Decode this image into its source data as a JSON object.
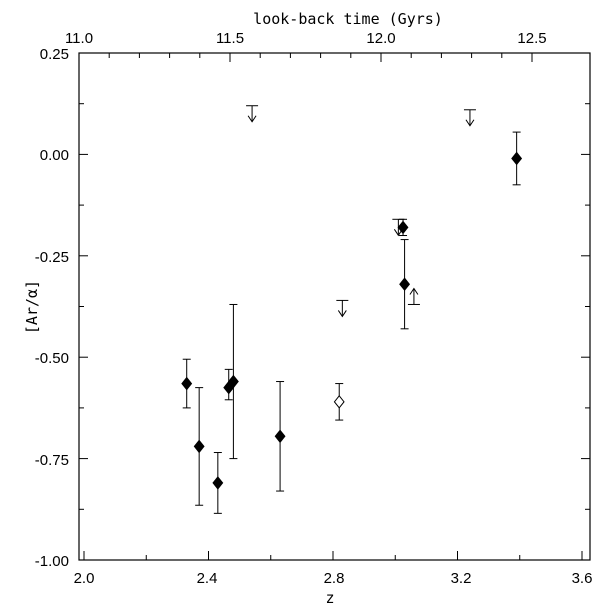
{
  "chart_data": {
    "type": "scatter",
    "xlabel": "z",
    "ylabel": "[Ar/α]",
    "top_xlabel": "look-back time (Gyrs)",
    "xlim": [
      2.0,
      3.6
    ],
    "ylim": [
      -1.0,
      0.25
    ],
    "x_ticks": [
      "2.0",
      "2.4",
      "2.8",
      "3.2",
      "3.6"
    ],
    "y_ticks": [
      "-1.00",
      "-0.75",
      "-0.50",
      "-0.25",
      "0.00",
      "0.25"
    ],
    "top_ticks": [
      "11.0",
      "11.5",
      "12.0",
      "12.5"
    ],
    "grid": false,
    "series": [
      {
        "marker": "filled-diamond",
        "points": [
          {
            "x": 2.33,
            "y": -0.565,
            "err_lo": 0.06,
            "err_hi": 0.06
          },
          {
            "x": 2.37,
            "y": -0.72,
            "err_lo": 0.145,
            "err_hi": 0.145
          },
          {
            "x": 2.43,
            "y": -0.81,
            "err_lo": 0.075,
            "err_hi": 0.075
          },
          {
            "x": 2.465,
            "y": -0.575,
            "err_lo": 0.03,
            "err_hi": 0.045
          },
          {
            "x": 2.48,
            "y": -0.56,
            "err_lo": 0.19,
            "err_hi": 0.19
          },
          {
            "x": 2.63,
            "y": -0.695,
            "err_lo": 0.135,
            "err_hi": 0.135
          },
          {
            "x": 3.025,
            "y": -0.18,
            "err_lo": 0.02,
            "err_hi": 0.02
          },
          {
            "x": 3.03,
            "y": -0.32,
            "err_lo": 0.11,
            "err_hi": 0.11
          },
          {
            "x": 3.39,
            "y": -0.01,
            "err_lo": 0.065,
            "err_hi": 0.065
          }
        ]
      },
      {
        "marker": "open-diamond",
        "points": [
          {
            "x": 2.82,
            "y": -0.61,
            "err_lo": 0.045,
            "err_hi": 0.045
          }
        ]
      },
      {
        "marker": "upper-limit",
        "points": [
          {
            "x": 2.54,
            "y": 0.12
          },
          {
            "x": 2.83,
            "y": -0.36
          },
          {
            "x": 3.01,
            "y": -0.16
          },
          {
            "x": 3.24,
            "y": 0.11
          }
        ]
      },
      {
        "marker": "lower-limit",
        "points": [
          {
            "x": 3.06,
            "y": -0.37
          }
        ]
      }
    ]
  }
}
